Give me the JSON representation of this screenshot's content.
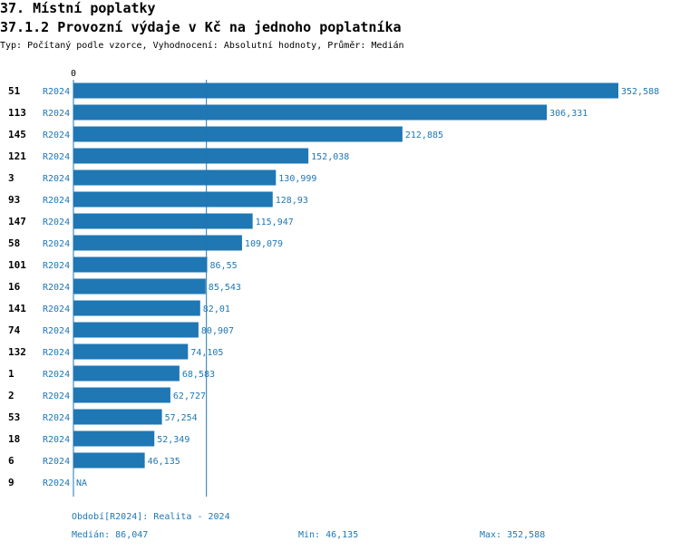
{
  "header": {
    "title": "37. Místní poplatky",
    "subtitle": "37.1.2 Provozní výdaje v Kč na jednoho poplatníka",
    "description": "Typ: Počítaný podle vzorce, Vyhodnocení: Absolutní hodnoty, Průměr: Medián"
  },
  "chart_data": {
    "type": "bar",
    "orientation": "horizontal",
    "axis_zero_label": "0",
    "xlim": [
      0,
      352.588
    ],
    "median_line": 86.047,
    "bar_color": "#1f77b4",
    "rows": [
      {
        "id": "51",
        "period": "R2024",
        "value": 352.588,
        "label": "352,588"
      },
      {
        "id": "113",
        "period": "R2024",
        "value": 306.331,
        "label": "306,331"
      },
      {
        "id": "145",
        "period": "R2024",
        "value": 212.885,
        "label": "212,885"
      },
      {
        "id": "121",
        "period": "R2024",
        "value": 152.038,
        "label": "152,038"
      },
      {
        "id": "3",
        "period": "R2024",
        "value": 130.999,
        "label": "130,999"
      },
      {
        "id": "93",
        "period": "R2024",
        "value": 128.93,
        "label": "128,93"
      },
      {
        "id": "147",
        "period": "R2024",
        "value": 115.947,
        "label": "115,947"
      },
      {
        "id": "58",
        "period": "R2024",
        "value": 109.079,
        "label": "109,079"
      },
      {
        "id": "101",
        "period": "R2024",
        "value": 86.55,
        "label": "86,55"
      },
      {
        "id": "16",
        "period": "R2024",
        "value": 85.543,
        "label": "85,543"
      },
      {
        "id": "141",
        "period": "R2024",
        "value": 82.01,
        "label": "82,01"
      },
      {
        "id": "74",
        "period": "R2024",
        "value": 80.907,
        "label": "80,907"
      },
      {
        "id": "132",
        "period": "R2024",
        "value": 74.105,
        "label": "74,105"
      },
      {
        "id": "1",
        "period": "R2024",
        "value": 68.583,
        "label": "68,583"
      },
      {
        "id": "2",
        "period": "R2024",
        "value": 62.727,
        "label": "62,727"
      },
      {
        "id": "53",
        "period": "R2024",
        "value": 57.254,
        "label": "57,254"
      },
      {
        "id": "18",
        "period": "R2024",
        "value": 52.349,
        "label": "52,349"
      },
      {
        "id": "6",
        "period": "R2024",
        "value": 46.135,
        "label": "46,135"
      },
      {
        "id": "9",
        "period": "R2024",
        "value": null,
        "label": "NA"
      }
    ]
  },
  "footer": {
    "period": "Období[R2024]: Realita - 2024",
    "median": "Medián: 86,047",
    "min": "Min: 46,135",
    "max": "Max: 352,588"
  }
}
